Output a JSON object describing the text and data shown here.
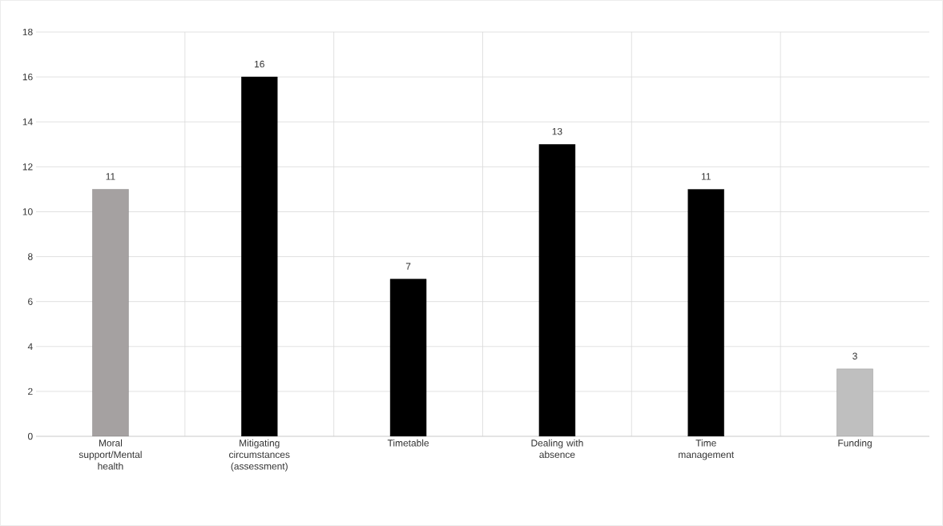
{
  "chart_data": {
    "type": "bar",
    "categories": [
      "Moral support/Mental health",
      "Mitigating circumstances (assessment)",
      "Timetable",
      "Dealing with absence",
      "Time management",
      "Funding"
    ],
    "values": [
      11,
      16,
      7,
      13,
      11,
      3
    ],
    "colors": [
      "#a5a1a1",
      "#000000",
      "#000000",
      "#000000",
      "#000000",
      "#bfbfbf"
    ],
    "ylim": [
      0,
      18
    ],
    "yticks": [
      0,
      2,
      4,
      6,
      8,
      10,
      12,
      14,
      16,
      18
    ],
    "grid": true,
    "data_labels": true
  }
}
